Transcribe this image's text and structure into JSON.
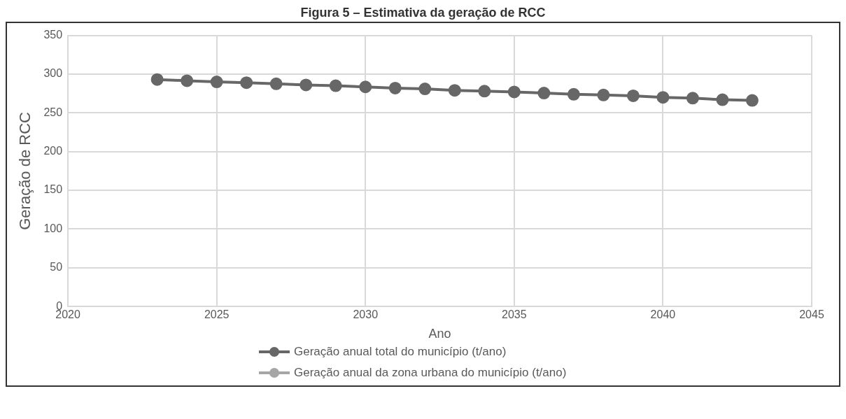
{
  "chart_data": {
    "type": "line",
    "title": "Figura 5 – Estimativa da geração de RCC",
    "xlabel": "Ano",
    "ylabel": "Geração de RCC",
    "x": [
      2023,
      2024,
      2025,
      2026,
      2027,
      2028,
      2029,
      2030,
      2031,
      2032,
      2033,
      2034,
      2035,
      2036,
      2037,
      2038,
      2039,
      2040,
      2041,
      2042,
      2043
    ],
    "series": [
      {
        "name": "Geração anual total do município (t/ano)",
        "color": "#676767",
        "values": [
          293,
          291.5,
          290,
          289,
          287.5,
          286,
          285,
          283.5,
          282,
          281,
          279,
          278,
          277,
          275.5,
          274,
          273,
          272,
          270,
          269,
          267,
          266
        ]
      },
      {
        "name": "Geração anual da zona urbana do município (t/ano)",
        "color": "#a6a6a6",
        "values": [
          null,
          null,
          null,
          null,
          null,
          null,
          null,
          null,
          null,
          null,
          null,
          null,
          null,
          null,
          null,
          null,
          null,
          null,
          null,
          null,
          null
        ]
      }
    ],
    "xlim": [
      2020,
      2045
    ],
    "xticks": [
      2020,
      2025,
      2030,
      2035,
      2040,
      2045
    ],
    "ylim": [
      0,
      350
    ],
    "yticks": [
      0,
      50,
      100,
      150,
      200,
      250,
      300,
      350
    ],
    "grid": true,
    "legend": "bottom",
    "marker": "circle",
    "line_style": "solid"
  }
}
